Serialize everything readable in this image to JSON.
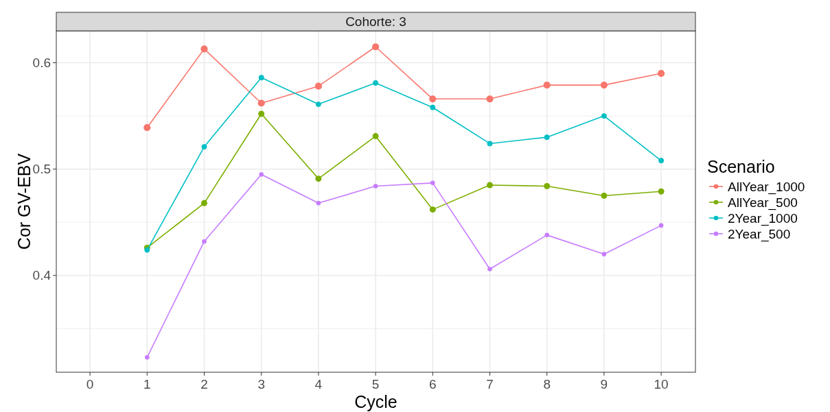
{
  "chart_data": {
    "type": "line",
    "title": "Cohorte: 3",
    "xlabel": "Cycle",
    "ylabel": "Cor GV-EBV",
    "legend_title": "Scenario",
    "x": [
      1,
      2,
      3,
      4,
      5,
      6,
      7,
      8,
      9,
      10
    ],
    "series": [
      {
        "name": "AllYear_1000",
        "color": "#f8766d",
        "values": [
          0.539,
          0.613,
          0.562,
          0.578,
          0.615,
          0.566,
          0.566,
          0.579,
          0.579,
          0.59
        ]
      },
      {
        "name": "AllYear_500",
        "color": "#7cae00",
        "values": [
          0.426,
          0.468,
          0.552,
          0.491,
          0.531,
          0.462,
          0.485,
          0.484,
          0.475,
          0.479
        ]
      },
      {
        "name": "2Year_1000",
        "color": "#00bfc4",
        "values": [
          0.424,
          0.521,
          0.586,
          0.561,
          0.581,
          0.558,
          0.524,
          0.53,
          0.55,
          0.508
        ]
      },
      {
        "name": "2Year_500",
        "color": "#c77cff",
        "values": [
          0.323,
          0.432,
          0.495,
          0.468,
          0.484,
          0.487,
          0.406,
          0.438,
          0.42,
          0.447
        ]
      }
    ],
    "xlim": [
      -0.59,
      10.6
    ],
    "ylim": [
      0.309,
      0.63
    ],
    "xticks": [
      0,
      1,
      2,
      3,
      4,
      5,
      6,
      7,
      8,
      9,
      10
    ],
    "yticks": [
      {
        "value": 0.35,
        "label": null
      },
      0.4,
      {
        "value": 0.45,
        "label": null
      },
      0.5,
      {
        "value": 0.55,
        "label": null
      },
      0.6
    ],
    "grid": true,
    "legend": "right",
    "marker": "circle",
    "line_style": "solid"
  }
}
